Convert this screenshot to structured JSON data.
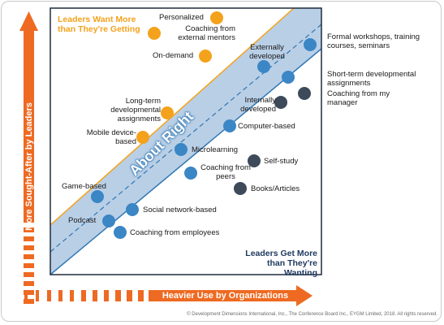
{
  "axes": {
    "y_label": "More Sought-After by Leaders",
    "x_label": "Heavier Use by Organizations"
  },
  "regions": {
    "top_left": "Leaders Want More than They're Getting",
    "bottom_right": "Leaders Get More than They're Wanting",
    "band": "About Right"
  },
  "colors": {
    "orange": "#f4a21c",
    "axis_orange": "#ee6a22",
    "blue": "#3b86c5",
    "dark": "#3d4a5a",
    "band_fill": "#b9cfe6",
    "band_edge": "#2f77b3",
    "frame": "#1f2b3d"
  },
  "items": [
    {
      "id": "personalized",
      "label": "Personalized",
      "color": "orange"
    },
    {
      "id": "coaching-external",
      "label": "Coaching from external mentors",
      "color": "orange"
    },
    {
      "id": "on-demand",
      "label": "On-demand",
      "color": "orange"
    },
    {
      "id": "long-term",
      "label": "Long-term developmental assignments",
      "color": "orange"
    },
    {
      "id": "mobile",
      "label": "Mobile device-based",
      "color": "orange"
    },
    {
      "id": "formal-workshops",
      "label": "Formal workshops, training courses, seminars",
      "color": "blue"
    },
    {
      "id": "externally-developed",
      "label": "Externally developed",
      "color": "blue"
    },
    {
      "id": "short-term",
      "label": "Short-term developmental assignments",
      "color": "blue"
    },
    {
      "id": "computer-based",
      "label": "Computer-based",
      "color": "blue"
    },
    {
      "id": "microlearning",
      "label": "Microlearning",
      "color": "blue"
    },
    {
      "id": "coaching-peers",
      "label": "Coaching from peers",
      "color": "blue"
    },
    {
      "id": "game-based",
      "label": "Game-based",
      "color": "blue"
    },
    {
      "id": "social-network",
      "label": "Social network-based",
      "color": "blue"
    },
    {
      "id": "podcast",
      "label": "Podcast",
      "color": "blue"
    },
    {
      "id": "coaching-employees",
      "label": "Coaching from employees",
      "color": "blue"
    },
    {
      "id": "coaching-manager",
      "label": "Coaching from my manager",
      "color": "dark"
    },
    {
      "id": "internally-developed",
      "label": "Internally developed",
      "color": "dark"
    },
    {
      "id": "self-study",
      "label": "Self-study",
      "color": "dark"
    },
    {
      "id": "books-articles",
      "label": "Books/Articles",
      "color": "dark"
    }
  ],
  "copyright": "© Development Dimensions International, Inc., The Conference Board Inc., EYGM Limited, 2018. All rights reserved."
}
